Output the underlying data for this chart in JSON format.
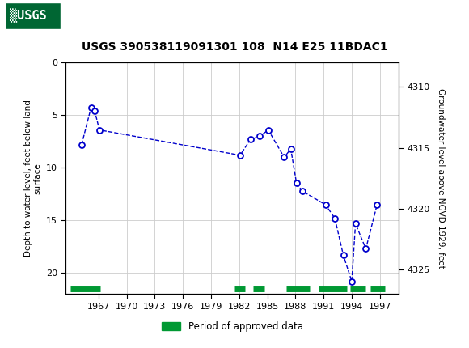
{
  "title": "USGS 390538119091301 108  N14 E25 11BDAC1",
  "ylabel_left": "Depth to water level, feet below land\nsurface",
  "ylabel_right": "Groundwater level above NGVD 1929, feet",
  "ylim_left": [
    0,
    22
  ],
  "xlim": [
    1963.5,
    1999
  ],
  "xticks": [
    1967,
    1970,
    1973,
    1976,
    1979,
    1982,
    1985,
    1988,
    1991,
    1994,
    1997
  ],
  "yticks_left": [
    0,
    5,
    10,
    15,
    20
  ],
  "yticks_right": [
    4325,
    4320,
    4315,
    4310
  ],
  "yticks_right_labels": [
    "4325",
    "4320",
    "4315",
    "4310"
  ],
  "data_x": [
    1965.2,
    1966.2,
    1966.6,
    1967.1,
    1982.1,
    1983.2,
    1984.2,
    1985.1,
    1986.8,
    1987.5,
    1988.1,
    1988.7,
    1991.2,
    1992.2,
    1993.1,
    1994.0,
    1994.4,
    1995.5,
    1996.7
  ],
  "data_y": [
    7.8,
    4.3,
    4.6,
    6.4,
    8.8,
    7.3,
    7.0,
    6.4,
    9.0,
    8.2,
    11.4,
    12.2,
    13.5,
    14.8,
    18.3,
    20.8,
    15.3,
    17.7,
    13.5
  ],
  "line_color": "#0000CC",
  "line_style": "--",
  "marker": "o",
  "marker_facecolor": "white",
  "marker_edgecolor": "#0000CC",
  "marker_size": 5,
  "grid_color": "#CCCCCC",
  "bg_color": "#FFFFFF",
  "header_bg": "#006633",
  "header_text": "#FFFFFF",
  "approved_bar_color": "#009933",
  "approved_segments": [
    [
      1964.0,
      1967.2
    ],
    [
      1981.5,
      1982.6
    ],
    [
      1983.5,
      1984.7
    ],
    [
      1987.0,
      1989.5
    ],
    [
      1990.5,
      1993.5
    ],
    [
      1993.8,
      1995.5
    ],
    [
      1996.0,
      1997.5
    ]
  ],
  "legend_text": "Period of approved data",
  "legend_color": "#009933"
}
